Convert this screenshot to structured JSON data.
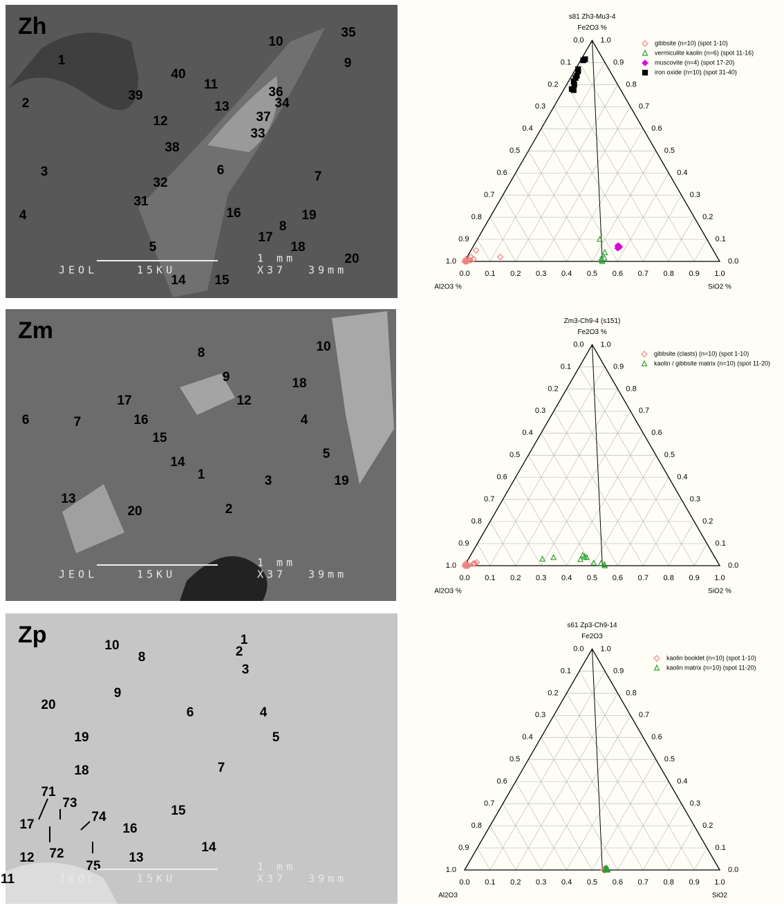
{
  "images": [
    {
      "label": "Zh",
      "spots": [
        1,
        2,
        3,
        4,
        5,
        10,
        35,
        9,
        40,
        11,
        39,
        13,
        36,
        34,
        12,
        37,
        33,
        38,
        6,
        7,
        32,
        31,
        16,
        19,
        8,
        17,
        18,
        20,
        14,
        15
      ],
      "scale_bar": "1 mm",
      "footer": [
        "JEOL",
        "15KU",
        "X37",
        "39mm"
      ]
    },
    {
      "label": "Zm",
      "spots": [
        8,
        10,
        9,
        18,
        17,
        12,
        6,
        7,
        16,
        4,
        15,
        5,
        14,
        1,
        3,
        19,
        13,
        20,
        2
      ],
      "scale_bar": "1 mm",
      "footer": [
        "JEOL",
        "15KU",
        "X37",
        "39mm"
      ]
    },
    {
      "label": "Zp",
      "spots": [
        1,
        2,
        3,
        10,
        8,
        20,
        9,
        6,
        4,
        19,
        5,
        18,
        7,
        71,
        73,
        74,
        15,
        17,
        16,
        72,
        14,
        12,
        13,
        75,
        11
      ],
      "scale_bar": "1 mm",
      "footer": [
        "JEOL",
        "15KU",
        "X37",
        "39mm"
      ]
    }
  ],
  "chart_data": [
    {
      "type": "ternary",
      "title": "s81  Zh3-Mu3-4",
      "top_label": "Fe2O3 %",
      "left_label": "Al2O3 %",
      "right_label": "SiO2 %",
      "ticks": [
        {
          "value": 0,
          "label": "0.0"
        },
        0.1,
        0.2,
        0.3,
        0.4,
        0.5,
        0.6,
        0.7,
        0.8,
        0.9,
        {
          "value": 1,
          "label": "1.0"
        }
      ],
      "grid": true,
      "tie_line_sio2": 0.54,
      "series": [
        {
          "name": "gibbsite (n=10) (spot 1-10)",
          "color": "#f08080",
          "marker": "open-diamond",
          "points": [
            [
              0,
              0
            ],
            [
              0.005,
              0
            ],
            [
              0.01,
              0
            ],
            [
              0.02,
              0.005
            ],
            [
              0.03,
              0.01
            ],
            [
              0.02,
              0.05
            ],
            [
              0.13,
              0.02
            ],
            [
              0.01,
              0.005
            ],
            [
              0,
              0.01
            ],
            [
              0.015,
              0.02
            ]
          ]
        },
        {
          "name": "vermiculite kaolin (n=6) (spot 11-16)",
          "color": "#2e9e2e",
          "marker": "open-triangle",
          "points": [
            [
              0.48,
              0.1
            ],
            [
              0.53,
              0.04
            ],
            [
              0.53,
              0.01
            ],
            [
              0.54,
              0
            ],
            [
              0.535,
              0.005
            ],
            [
              0.54,
              0.015
            ]
          ]
        },
        {
          "name": "muscovite (n=4) (spot 17-20)",
          "color": "#e000e0",
          "marker": "diamond",
          "points": [
            [
              0.57,
              0.07
            ],
            [
              0.575,
              0.065
            ],
            [
              0.57,
              0.06
            ],
            [
              0.565,
              0.07
            ]
          ]
        },
        {
          "name": "iron oxide (n=10) (spot 31-40)",
          "color": "#000000",
          "marker": "square",
          "points": [
            [
              0.01,
              0.91
            ],
            [
              0.015,
              0.915
            ],
            [
              0.01,
              0.87
            ],
            [
              0.015,
              0.86
            ],
            [
              0.02,
              0.84
            ],
            [
              0.02,
              0.815
            ],
            [
              0.03,
              0.8
            ],
            [
              0.03,
              0.78
            ],
            [
              0.04,
              0.775
            ],
            [
              0.02,
              0.83
            ]
          ]
        }
      ]
    },
    {
      "type": "ternary",
      "title": "Zm3-Ch9-4 (s151)",
      "top_label": "Fe2O3 %",
      "left_label": "Al2O3 %",
      "right_label": "SiO2 %",
      "ticks": [
        {
          "value": 0,
          "label": "0.0"
        },
        0.1,
        0.2,
        0.3,
        0.4,
        0.5,
        0.6,
        0.7,
        0.8,
        0.9,
        {
          "value": 1,
          "label": "1.0"
        }
      ],
      "grid": true,
      "tie_line_sio2": 0.54,
      "series": [
        {
          "name": "gibbsite (clasts) (n=10) (spot 1-10)",
          "color": "#f08080",
          "marker": "open-diamond",
          "points": [
            [
              0,
              0
            ],
            [
              0.005,
              0
            ],
            [
              0.01,
              0
            ],
            [
              0.035,
              0.01
            ],
            [
              0.04,
              0.015
            ],
            [
              0.005,
              0.005
            ],
            [
              0.01,
              0.005
            ],
            [
              0,
              0.01
            ],
            [
              0.015,
              0
            ],
            [
              0.03,
              0.01
            ]
          ]
        },
        {
          "name": "kaolin / gibbsite matrix (n=10) (spot 11-20)",
          "color": "#2e9e2e",
          "marker": "open-triangle",
          "points": [
            [
              0.29,
              0.03
            ],
            [
              0.33,
              0.037
            ],
            [
              0.44,
              0.028
            ],
            [
              0.44,
              0.047
            ],
            [
              0.45,
              0.04
            ],
            [
              0.46,
              0.037
            ],
            [
              0.5,
              0.012
            ],
            [
              0.53,
              0.01
            ],
            [
              0.55,
              0
            ],
            [
              0.545,
              0.005
            ]
          ]
        }
      ]
    },
    {
      "type": "ternary",
      "title": "s61  Zp3-Ch9-14",
      "top_label": "Fe2O3",
      "left_label": "Al2O3",
      "right_label": "SiO2",
      "ticks": [
        {
          "value": 0,
          "label": "0.0"
        },
        0.1,
        0.2,
        0.3,
        0.4,
        0.5,
        0.6,
        0.7,
        0.8,
        0.9,
        {
          "value": 1,
          "label": "1.0"
        }
      ],
      "grid": true,
      "tie_line_sio2": 0.54,
      "series": [
        {
          "name": "kaolin booklet (n=10) (spot 1-10)",
          "color": "#f08080",
          "marker": "open-diamond",
          "points": [
            [
              0.545,
              0
            ],
            [
              0.55,
              0
            ],
            [
              0.545,
              0.005
            ],
            [
              0.55,
              0.005
            ],
            [
              0.548,
              0.002
            ],
            [
              0.552,
              0
            ],
            [
              0.547,
              0.003
            ],
            [
              0.55,
              0.002
            ],
            [
              0.546,
              0.001
            ],
            [
              0.553,
              0.003
            ]
          ]
        },
        {
          "name": "kaolin matrix (n=10) (spot 11-20)",
          "color": "#2e9e2e",
          "marker": "open-triangle",
          "points": [
            [
              0.55,
              0.005
            ],
            [
              0.555,
              0.003
            ],
            [
              0.553,
              0
            ],
            [
              0.56,
              0
            ],
            [
              0.548,
              0.006
            ],
            [
              0.552,
              0.004
            ],
            [
              0.557,
              0.002
            ],
            [
              0.55,
              0.008
            ],
            [
              0.554,
              0.006
            ],
            [
              0.558,
              0.004
            ]
          ]
        }
      ]
    }
  ]
}
